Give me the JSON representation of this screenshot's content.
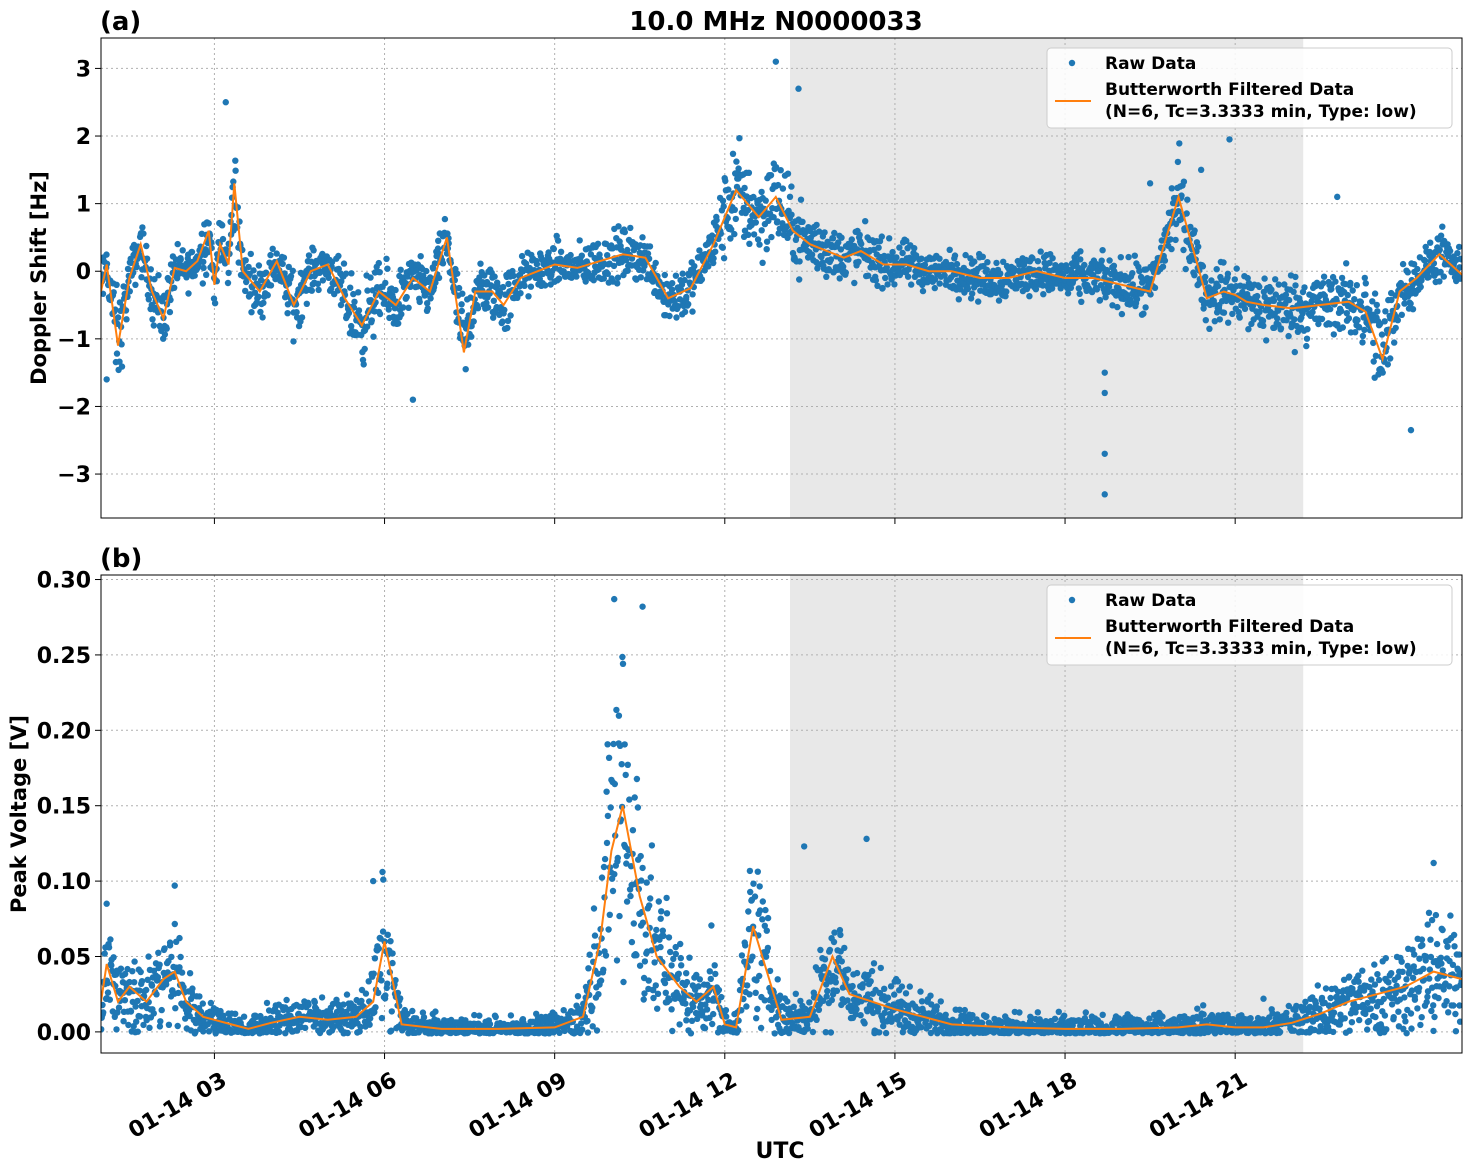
{
  "figure": {
    "title": "10.0 MHz N0000033",
    "xlabel": "UTC",
    "panel_a_label": "(a)",
    "panel_b_label": "(b)",
    "colors": {
      "raw": "#1f77b4",
      "filtered": "#ff7f0e",
      "shade": "#e8e8e8",
      "grid": "#b0b0b0"
    }
  },
  "legend": {
    "raw": "Raw Data",
    "filtered_line1": "Butterworth Filtered Data",
    "filtered_line2": "(N=6, Tc=3.3333 min, Type: low)"
  },
  "chart_data": [
    {
      "type": "scatter",
      "panel": "(a)",
      "title": "10.0 MHz N0000033",
      "xlabel": "",
      "ylabel": "Doppler Shift [Hz]",
      "x_unit": "hours UTC on 01-14",
      "xlim": [
        1.0,
        25.0
      ],
      "ylim": [
        -3.65,
        3.45
      ],
      "yticks": [
        3,
        2,
        1,
        0,
        -1,
        -2,
        -3
      ],
      "ytick_labels": [
        "3",
        "2",
        "1",
        "0",
        "−1",
        "−2",
        "−3"
      ],
      "xticks": [
        3,
        6,
        9,
        12,
        15,
        18,
        21
      ],
      "xtick_labels": [
        "01-14 03",
        "01-14 06",
        "01-14 09",
        "01-14 12",
        "01-14 15",
        "01-14 18",
        "01-14 21"
      ],
      "grid": true,
      "legend_position": "top-right",
      "shaded_interval": [
        13.15,
        22.2
      ],
      "series": [
        {
          "name": "Butterworth Filtered Data",
          "style": "line",
          "x": [
            1.0,
            1.1,
            1.3,
            1.5,
            1.7,
            1.9,
            2.1,
            2.3,
            2.5,
            2.7,
            2.9,
            3.0,
            3.1,
            3.25,
            3.35,
            3.5,
            3.8,
            4.1,
            4.4,
            4.7,
            5.0,
            5.3,
            5.6,
            5.9,
            6.2,
            6.5,
            6.8,
            7.1,
            7.4,
            7.6,
            7.9,
            8.1,
            8.4,
            8.7,
            9.0,
            9.4,
            9.8,
            10.2,
            10.6,
            11.0,
            11.4,
            11.8,
            12.2,
            12.6,
            12.9,
            13.2,
            13.5,
            13.8,
            14.1,
            14.4,
            14.8,
            15.2,
            15.6,
            16.0,
            16.5,
            17.0,
            17.5,
            18.0,
            18.5,
            19.0,
            19.5,
            20.0,
            20.5,
            20.8,
            21.0,
            21.2,
            21.5,
            22.0,
            22.5,
            23.0,
            23.3,
            23.6,
            23.9,
            24.2,
            24.6,
            25.0
          ],
          "y": [
            -0.3,
            0.1,
            -1.1,
            -0.1,
            0.4,
            -0.3,
            -0.7,
            0.05,
            0.0,
            0.15,
            0.6,
            -0.2,
            0.4,
            0.1,
            1.3,
            0.0,
            -0.3,
            0.15,
            -0.5,
            0.0,
            0.1,
            -0.4,
            -0.8,
            -0.3,
            -0.5,
            -0.1,
            -0.3,
            0.5,
            -1.2,
            -0.3,
            -0.3,
            -0.5,
            -0.1,
            0.0,
            0.1,
            0.05,
            0.15,
            0.25,
            0.2,
            -0.4,
            -0.25,
            0.4,
            1.2,
            0.8,
            1.1,
            0.6,
            0.4,
            0.3,
            0.2,
            0.3,
            0.1,
            0.1,
            0.0,
            0.0,
            -0.1,
            -0.1,
            0.0,
            -0.1,
            -0.1,
            -0.2,
            -0.3,
            1.1,
            -0.4,
            -0.3,
            -0.35,
            -0.45,
            -0.5,
            -0.55,
            -0.5,
            -0.45,
            -0.6,
            -1.3,
            -0.3,
            -0.1,
            0.25,
            -0.05
          ]
        },
        {
          "name": "Raw Data",
          "style": "markers",
          "notable_points": [
            {
              "x": 3.2,
              "y": 2.5
            },
            {
              "x": 1.1,
              "y": -1.6
            },
            {
              "x": 6.5,
              "y": -1.9
            },
            {
              "x": 12.9,
              "y": 3.1
            },
            {
              "x": 13.3,
              "y": 2.7
            },
            {
              "x": 18.7,
              "y": -3.3
            },
            {
              "x": 18.7,
              "y": -2.7
            },
            {
              "x": 18.7,
              "y": -1.8
            },
            {
              "x": 18.7,
              "y": -1.5
            },
            {
              "x": 19.5,
              "y": 1.3
            },
            {
              "x": 20.4,
              "y": 1.5
            },
            {
              "x": 20.9,
              "y": 1.95
            },
            {
              "x": 22.8,
              "y": 1.1
            },
            {
              "x": 24.1,
              "y": -2.35
            }
          ]
        }
      ]
    },
    {
      "type": "scatter",
      "panel": "(b)",
      "title": "",
      "xlabel": "UTC",
      "ylabel": "Peak Voltage [V]",
      "x_unit": "hours UTC on 01-14",
      "xlim": [
        1.0,
        25.0
      ],
      "ylim": [
        -0.014,
        0.303
      ],
      "yticks": [
        0.3,
        0.25,
        0.2,
        0.15,
        0.1,
        0.05,
        0.0
      ],
      "ytick_labels": [
        "0.30",
        "0.25",
        "0.20",
        "0.15",
        "0.10",
        "0.05",
        "0.00"
      ],
      "xticks": [
        3,
        6,
        9,
        12,
        15,
        18,
        21
      ],
      "xtick_labels": [
        "01-14 03",
        "01-14 06",
        "01-14 09",
        "01-14 12",
        "01-14 15",
        "01-14 18",
        "01-14 21"
      ],
      "grid": true,
      "legend_position": "top-right",
      "shaded_interval": [
        13.15,
        22.2
      ],
      "series": [
        {
          "name": "Butterworth Filtered Data",
          "style": "line",
          "x": [
            1.0,
            1.1,
            1.3,
            1.5,
            1.8,
            2.1,
            2.3,
            2.5,
            2.8,
            3.0,
            3.3,
            3.6,
            4.0,
            4.5,
            5.0,
            5.5,
            5.8,
            6.0,
            6.3,
            7.0,
            8.0,
            9.0,
            9.5,
            9.8,
            10.0,
            10.2,
            10.5,
            10.8,
            11.2,
            11.5,
            11.8,
            12.0,
            12.2,
            12.5,
            13.0,
            13.5,
            13.9,
            14.2,
            14.6,
            15.0,
            15.5,
            16.0,
            17.0,
            18.0,
            19.0,
            20.0,
            20.5,
            21.0,
            21.5,
            22.0,
            22.5,
            23.0,
            23.5,
            24.0,
            24.5,
            25.0
          ],
          "y": [
            0.02,
            0.045,
            0.02,
            0.03,
            0.02,
            0.035,
            0.04,
            0.02,
            0.01,
            0.008,
            0.005,
            0.002,
            0.006,
            0.01,
            0.008,
            0.01,
            0.02,
            0.06,
            0.005,
            0.002,
            0.002,
            0.003,
            0.01,
            0.06,
            0.12,
            0.15,
            0.09,
            0.05,
            0.03,
            0.02,
            0.03,
            0.005,
            0.003,
            0.07,
            0.008,
            0.01,
            0.05,
            0.025,
            0.02,
            0.015,
            0.01,
            0.005,
            0.003,
            0.002,
            0.002,
            0.003,
            0.005,
            0.003,
            0.003,
            0.006,
            0.012,
            0.02,
            0.025,
            0.03,
            0.04,
            0.035
          ]
        },
        {
          "name": "Raw Data",
          "style": "markers",
          "notable_points": [
            {
              "x": 5.8,
              "y": 0.1
            },
            {
              "x": 10.05,
              "y": 0.287
            },
            {
              "x": 10.55,
              "y": 0.282
            },
            {
              "x": 13.4,
              "y": 0.123
            },
            {
              "x": 14.5,
              "y": 0.128
            },
            {
              "x": 2.3,
              "y": 0.097
            },
            {
              "x": 1.1,
              "y": 0.085
            },
            {
              "x": 21.5,
              "y": 0.022
            },
            {
              "x": 24.5,
              "y": 0.112
            }
          ]
        }
      ]
    }
  ]
}
